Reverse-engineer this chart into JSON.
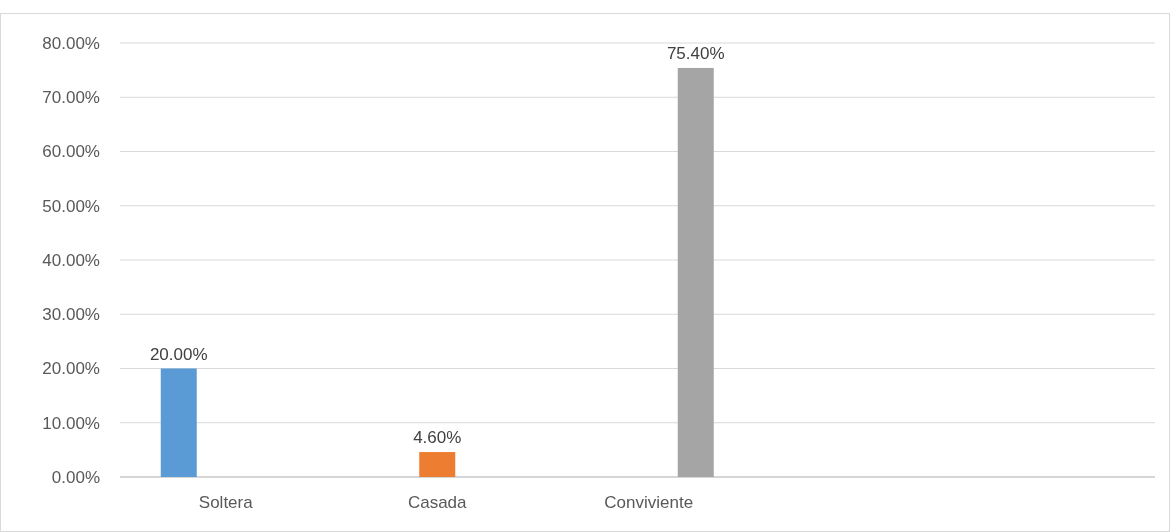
{
  "chart_data": {
    "type": "bar",
    "categories": [
      "Soltera",
      "Casada",
      "Conviviente",
      null,
      null
    ],
    "series": [
      {
        "color": "#5b9bd5",
        "values": [
          20,
          null,
          null,
          null,
          null
        ],
        "value_labels": [
          "20.00%",
          null,
          null,
          null,
          null
        ]
      },
      {
        "color": "#ed7d31",
        "values": [
          null,
          4.6,
          null,
          null,
          null
        ],
        "value_labels": [
          null,
          "4.60%",
          null,
          null,
          null
        ]
      },
      {
        "color": "#a5a5a5",
        "values": [
          null,
          null,
          75.4,
          null,
          null
        ],
        "value_labels": [
          null,
          null,
          "75.40%",
          null,
          null
        ]
      }
    ],
    "ylim": [
      0,
      80
    ],
    "yticks": [
      {
        "value": 0,
        "label": "0.00%"
      },
      {
        "value": 10,
        "label": "10.00%"
      },
      {
        "value": 20,
        "label": "20.00%"
      },
      {
        "value": 30,
        "label": "30.00%"
      },
      {
        "value": 40,
        "label": "40.00%"
      },
      {
        "value": 50,
        "label": "50.00%"
      },
      {
        "value": 60,
        "label": "60.00%"
      },
      {
        "value": 70,
        "label": "70.00%"
      },
      {
        "value": 80,
        "label": "80.00%"
      }
    ],
    "grid": "y"
  }
}
